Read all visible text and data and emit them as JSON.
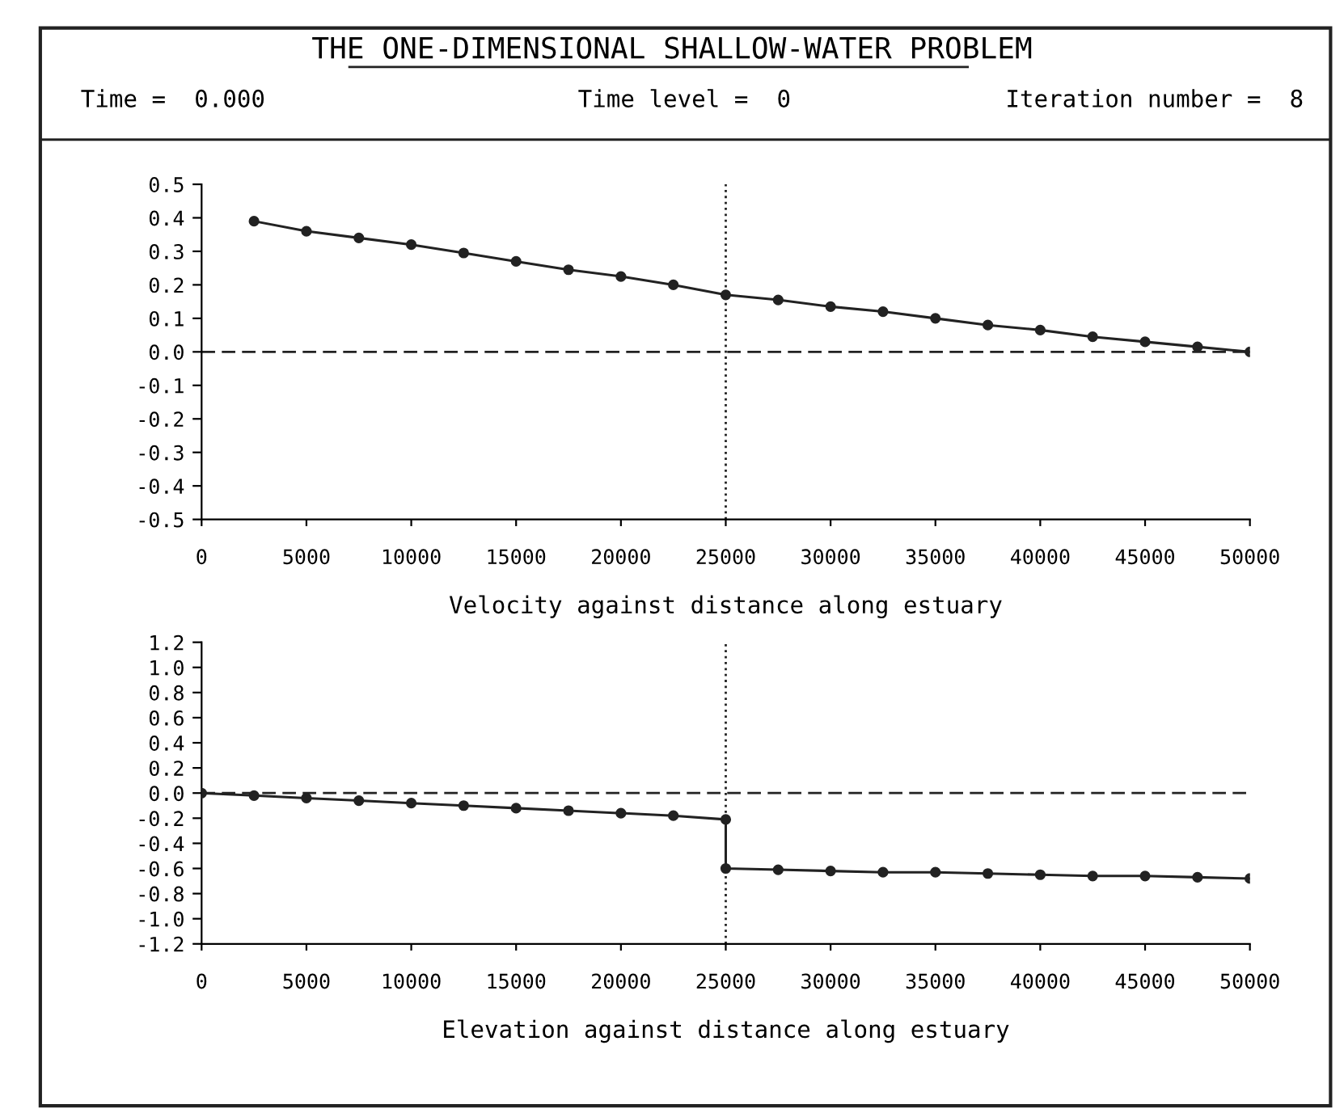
{
  "chart_data": [
    {
      "type": "line",
      "title": "THE ONE-DIMENSIONAL SHALLOW-WATER PROBLEM",
      "annotations": [
        "Time =  0.000",
        "Time level =  0",
        "Iteration number =  8"
      ],
      "xlabel": "Velocity against distance along estuary",
      "series": [
        {
          "color": "#222222",
          "x": [
            2500,
            5000,
            7500,
            10000,
            12500,
            15000,
            17500,
            20000,
            22500,
            25000,
            27500,
            30000,
            32500,
            35000,
            37500,
            40000,
            42500,
            45000,
            47500,
            50000
          ],
          "values": [
            0.39,
            0.36,
            0.34,
            0.32,
            0.295,
            0.27,
            0.245,
            0.225,
            0.2,
            0.17,
            0.155,
            0.135,
            0.12,
            0.1,
            0.08,
            0.065,
            0.045,
            0.03,
            0.015,
            0.0
          ]
        }
      ],
      "xlim": [
        0,
        50000
      ],
      "xticks": [
        0,
        5000,
        10000,
        15000,
        20000,
        25000,
        30000,
        35000,
        40000,
        45000,
        50000
      ],
      "ylim": [
        -0.5,
        0.5
      ],
      "yticks": [
        {
          "value": -0.5,
          "label": "-0.5"
        },
        {
          "value": -0.4,
          "label": "-0.4"
        },
        {
          "value": -0.3,
          "label": "-0.3"
        },
        {
          "value": -0.2,
          "label": "-0.2"
        },
        {
          "value": -0.1,
          "label": "-0.1"
        },
        {
          "value": 0.0,
          "label": "0.0"
        },
        {
          "value": 0.1,
          "label": "0.1"
        },
        {
          "value": 0.2,
          "label": "0.2"
        },
        {
          "value": 0.3,
          "label": "0.3"
        },
        {
          "value": 0.4,
          "label": "0.4"
        },
        {
          "value": 0.5,
          "label": "0.5"
        }
      ],
      "ref_lines": [
        {
          "axis": "y",
          "value": 0,
          "line_style": "dashed"
        },
        {
          "axis": "x",
          "value": 25000,
          "line_style": "dotted"
        }
      ],
      "marker": "circle",
      "line_style": "solid",
      "grid": false,
      "legend": false
    },
    {
      "type": "line",
      "xlabel": "Elevation against distance along estuary",
      "series": [
        {
          "color": "#222222",
          "x": [
            0,
            2500,
            5000,
            7500,
            10000,
            12500,
            15000,
            17500,
            20000,
            22500,
            25000,
            25000,
            27500,
            30000,
            32500,
            35000,
            37500,
            40000,
            42500,
            45000,
            47500,
            50000
          ],
          "values": [
            0,
            -0.02,
            -0.04,
            -0.06,
            -0.08,
            -0.1,
            -0.12,
            -0.14,
            -0.16,
            -0.18,
            -0.21,
            -0.6,
            -0.61,
            -0.62,
            -0.63,
            -0.63,
            -0.64,
            -0.65,
            -0.66,
            -0.66,
            -0.67,
            -0.68
          ]
        }
      ],
      "xlim": [
        0,
        50000
      ],
      "xticks": [
        0,
        5000,
        10000,
        15000,
        20000,
        25000,
        30000,
        35000,
        40000,
        45000,
        50000
      ],
      "ylim": [
        -1.2,
        1.2
      ],
      "yticks": [
        {
          "value": -1.2,
          "label": "-1.2"
        },
        {
          "value": -1.0,
          "label": "-1.0"
        },
        {
          "value": -0.8,
          "label": "-0.8"
        },
        {
          "value": -0.6,
          "label": "-0.6"
        },
        {
          "value": -0.4,
          "label": "-0.4"
        },
        {
          "value": -0.2,
          "label": "-0.2"
        },
        {
          "value": 0.0,
          "label": "0.0"
        },
        {
          "value": 0.2,
          "label": "0.2"
        },
        {
          "value": 0.4,
          "label": "0.4"
        },
        {
          "value": 0.6,
          "label": "0.6"
        },
        {
          "value": 0.8,
          "label": "0.8"
        },
        {
          "value": 1.0,
          "label": "1.0"
        },
        {
          "value": 1.2,
          "label": "1.2"
        }
      ],
      "ref_lines": [
        {
          "axis": "y",
          "value": 0,
          "line_style": "dashed"
        },
        {
          "axis": "x",
          "value": 25000,
          "line_style": "dotted"
        }
      ],
      "marker": "circle",
      "line_style": "solid",
      "grid": false,
      "legend": false
    }
  ]
}
